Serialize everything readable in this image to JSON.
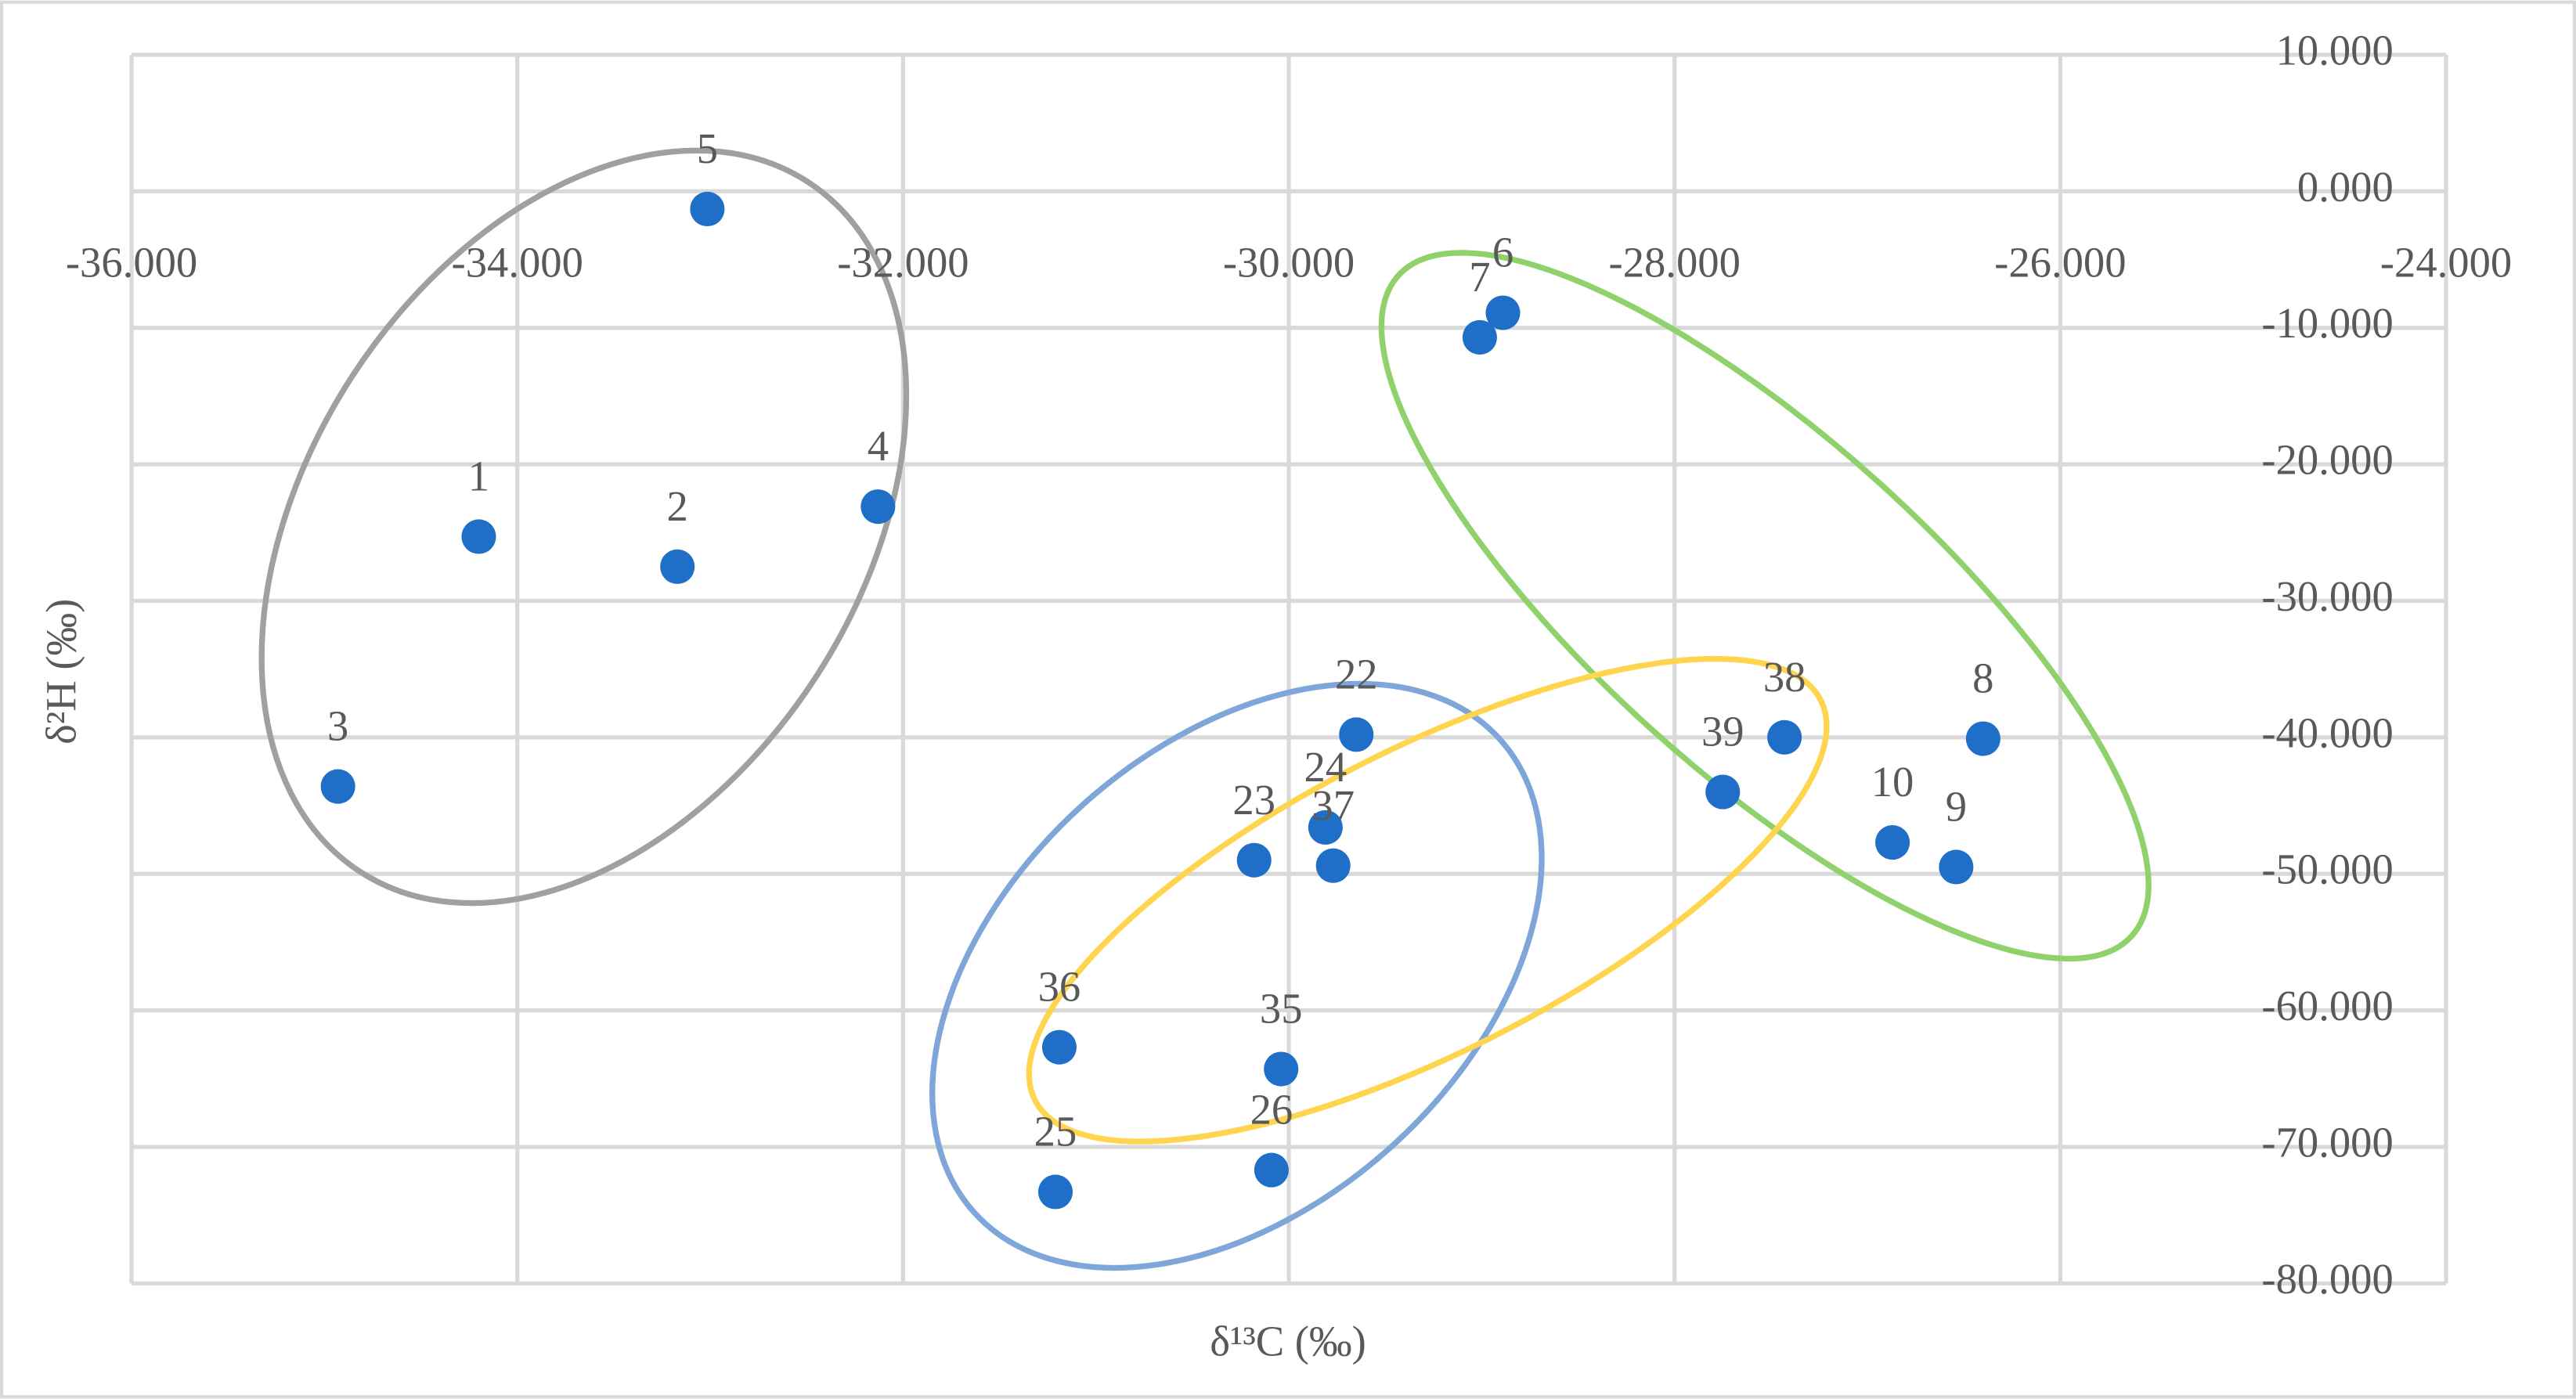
{
  "chart_data": {
    "type": "scatter",
    "x_label": "δ¹³C (‰)",
    "y_label": "δ²H (‰)",
    "x": [
      -34.2,
      -33.17,
      -34.93,
      -32.13,
      -33.015,
      -28.89,
      -29.01,
      -26.4,
      -26.54,
      -26.87,
      -29.65,
      -30.18,
      -29.81,
      -31.21,
      -30.09,
      -30.04,
      -31.19,
      -29.77,
      -27.43,
      -27.75
    ],
    "series": [
      {
        "color": "#1f6fc8",
        "labels": [
          "1",
          "2",
          "3",
          "4",
          "5",
          "6",
          "7",
          "8",
          "9",
          "10",
          "22",
          "23",
          "24",
          "25",
          "26",
          "35",
          "36",
          "37",
          "38",
          "39"
        ],
        "values": [
          -25.3,
          -27.5,
          -43.6,
          -23.1,
          -1.3,
          -8.9,
          -10.7,
          -40.1,
          -49.5,
          -47.7,
          -39.8,
          -49.0,
          -46.6,
          -73.3,
          -71.7,
          -64.3,
          -62.7,
          -49.4,
          -40.0,
          -44.0
        ]
      }
    ],
    "xlim": [
      -36,
      -24
    ],
    "xticks": [
      {
        "value": -36,
        "label": "-36.000"
      },
      {
        "value": -34,
        "label": "-34.000"
      },
      {
        "value": -32,
        "label": "-32.000"
      },
      {
        "value": -30,
        "label": "-30.000"
      },
      {
        "value": -28,
        "label": "-28.000"
      },
      {
        "value": -26,
        "label": "-26.000"
      },
      {
        "value": -24,
        "label": "-24.000"
      }
    ],
    "ylim": [
      -80,
      10
    ],
    "yticks": [
      {
        "value": 10,
        "label": "10.000"
      },
      {
        "value": 0,
        "label": "0.000"
      },
      {
        "value": -10,
        "label": "-10.000"
      },
      {
        "value": -20,
        "label": "-20.000"
      },
      {
        "value": -30,
        "label": "-30.000"
      },
      {
        "value": -40,
        "label": "-40.000"
      },
      {
        "value": -50,
        "label": "-50.000"
      },
      {
        "value": -60,
        "label": "-60.000"
      },
      {
        "value": -70,
        "label": "-70.000"
      },
      {
        "value": -80,
        "label": "-80.000"
      }
    ],
    "grid": true
  }
}
